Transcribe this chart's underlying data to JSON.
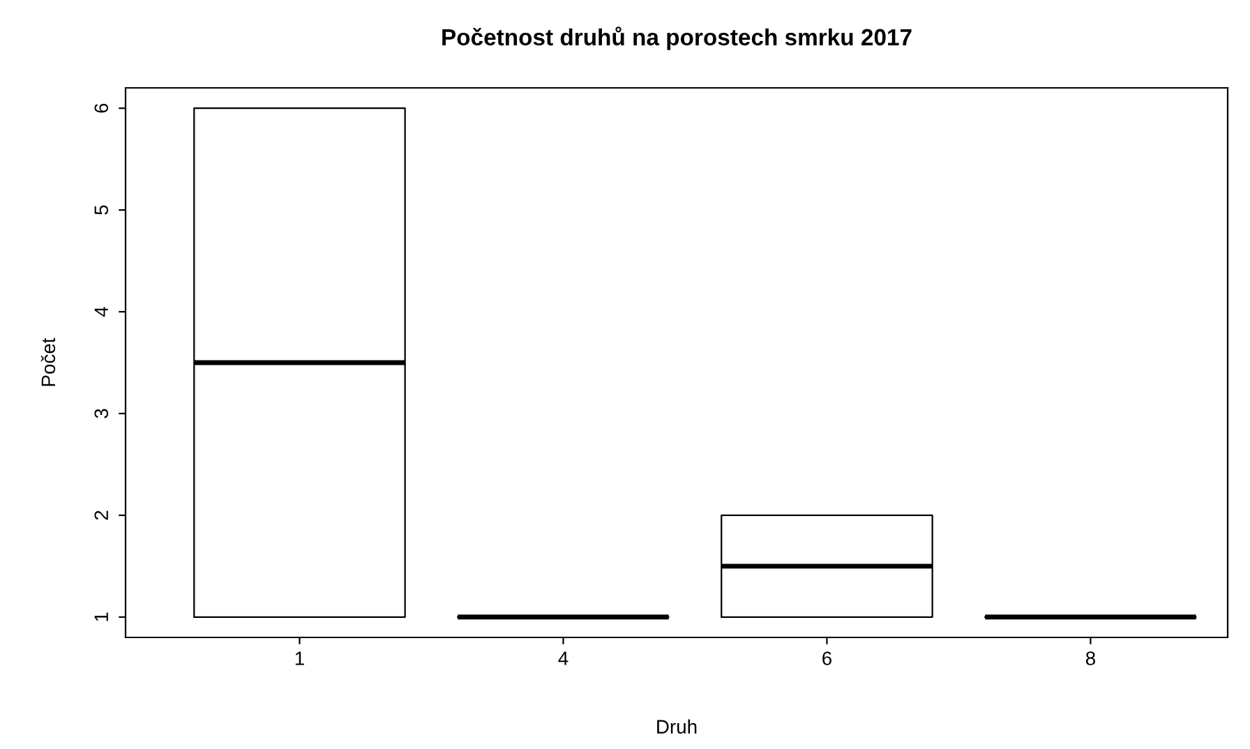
{
  "chart_data": {
    "type": "box",
    "title": "Početnost druhů na porostech smrku 2017",
    "xlabel": "Druh",
    "ylabel": "Počet",
    "categories": [
      "1",
      "4",
      "6",
      "8"
    ],
    "boxes": [
      {
        "low": 1,
        "q1": 1,
        "median": 3.5,
        "q3": 6,
        "high": 6
      },
      {
        "low": 1,
        "q1": 1,
        "median": 1,
        "q3": 1,
        "high": 1
      },
      {
        "low": 1,
        "q1": 1,
        "median": 1.5,
        "q3": 2,
        "high": 2
      },
      {
        "low": 1,
        "q1": 1,
        "median": 1,
        "q3": 1,
        "high": 1
      }
    ],
    "ylim": [
      0.8,
      6.2
    ],
    "yticks": [
      1,
      2,
      3,
      4,
      5,
      6
    ],
    "grid": false,
    "legend": false
  }
}
